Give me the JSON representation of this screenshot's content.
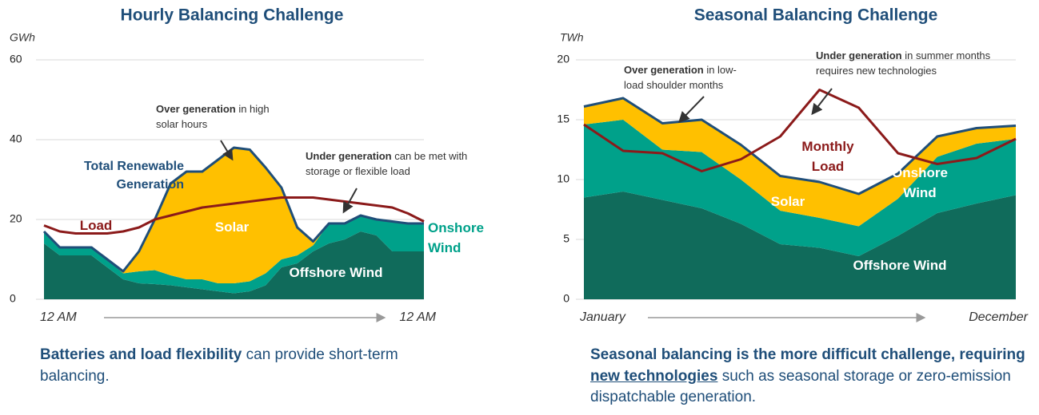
{
  "chart_data": [
    {
      "type": "stacked_area",
      "title": "Hourly Balancing Challenge",
      "ylabel": "GWh",
      "categories": [
        "12 AM",
        null,
        null,
        null,
        null,
        null,
        null,
        null,
        null,
        null,
        null,
        null,
        null,
        null,
        null,
        null,
        null,
        null,
        null,
        null,
        null,
        null,
        null,
        null,
        "12 AM"
      ],
      "ylim": [
        0,
        60
      ],
      "yticks": [
        0,
        20,
        40,
        60
      ],
      "grid": true,
      "outline_color": "#1f4e79",
      "series": [
        {
          "name": "Offshore Wind",
          "kind": "area",
          "color": "#106b5b",
          "values": [
            14,
            11,
            11,
            11,
            8,
            5,
            4,
            3.8,
            3.5,
            3,
            2.5,
            2,
            1.5,
            2,
            3.5,
            8,
            9,
            12,
            14,
            15,
            17,
            16,
            12,
            12,
            12
          ]
        },
        {
          "name": "Onshore Wind",
          "kind": "area",
          "color": "#00a18a",
          "values": [
            3,
            2,
            2,
            2,
            2,
            1.5,
            3,
            3.5,
            2.5,
            2,
            2.5,
            2,
            2.5,
            2.5,
            3,
            2,
            2,
            1.5,
            5,
            4,
            4,
            4,
            7.5,
            7,
            7
          ]
        },
        {
          "name": "Solar",
          "kind": "area",
          "color": "#ffc000",
          "values": [
            0,
            0,
            0,
            0,
            0,
            0.5,
            5,
            12.7,
            23,
            27,
            27,
            31,
            34,
            33,
            26.5,
            18,
            7,
            1,
            0,
            0,
            0,
            0,
            0,
            0,
            0
          ]
        },
        {
          "name": "Load",
          "kind": "line",
          "color": "#8b1a1a",
          "values": [
            18.5,
            17,
            16.5,
            16.5,
            16.5,
            17,
            18,
            20,
            21,
            22,
            23,
            23.5,
            24,
            24.5,
            25,
            25.5,
            25.5,
            25.5,
            25,
            24.5,
            24,
            23.5,
            23,
            21.5,
            19.5
          ]
        }
      ],
      "annotations": [
        {
          "bold": "Over generation",
          "text": " in high solar hours"
        },
        {
          "bold": "Under generation",
          "text": " can be met with storage or flexible load"
        },
        {
          "bold": "Total Renewable Generation"
        }
      ],
      "caption": [
        {
          "text": "Batteries and load flexibility",
          "bold": true
        },
        {
          "text": " can provide short-term balancing."
        }
      ]
    },
    {
      "type": "stacked_area",
      "title": "Seasonal Balancing Challenge",
      "ylabel": "TWh",
      "categories": [
        "January",
        null,
        null,
        null,
        null,
        null,
        null,
        null,
        null,
        null,
        null,
        "December"
      ],
      "ylim": [
        0,
        20
      ],
      "yticks": [
        0,
        5,
        10,
        15,
        20
      ],
      "grid": true,
      "outline_color": "#1f4e79",
      "series": [
        {
          "name": "Offshore Wind",
          "kind": "area",
          "color": "#106b5b",
          "values": [
            8.5,
            9,
            8.3,
            7.6,
            6.3,
            4.6,
            4.3,
            3.6,
            5.3,
            7.2,
            8,
            8.7
          ]
        },
        {
          "name": "Onshore Wind",
          "kind": "area",
          "color": "#00a18a",
          "values": [
            6.1,
            6,
            4.2,
            4.7,
            3.7,
            2.8,
            2.5,
            2.5,
            3.1,
            4.7,
            5,
            4.7
          ]
        },
        {
          "name": "Solar",
          "kind": "area",
          "color": "#ffc000",
          "values": [
            1.5,
            1.8,
            2.2,
            2.7,
            2.9,
            2.9,
            3,
            2.7,
            2.1,
            1.7,
            1.3,
            1.1
          ]
        },
        {
          "name": "Monthly Load",
          "kind": "line",
          "color": "#8b1a1a",
          "values": [
            14.6,
            12.4,
            12.2,
            10.7,
            11.7,
            13.6,
            17.5,
            16,
            12.2,
            11.3,
            11.8,
            13.4
          ]
        }
      ],
      "annotations": [
        {
          "bold": "Over generation",
          "text": " in low-load shoulder months"
        },
        {
          "bold": "Under generation",
          "text": " in summer months requires new technologies"
        }
      ],
      "caption": [
        {
          "text": "Seasonal balancing is the more difficult challenge, requiring ",
          "bold": true
        },
        {
          "text": "new technologies",
          "bold": true,
          "underline": true
        },
        {
          "text": " such as seasonal storage or zero-emission dispatchable generation."
        }
      ]
    }
  ]
}
